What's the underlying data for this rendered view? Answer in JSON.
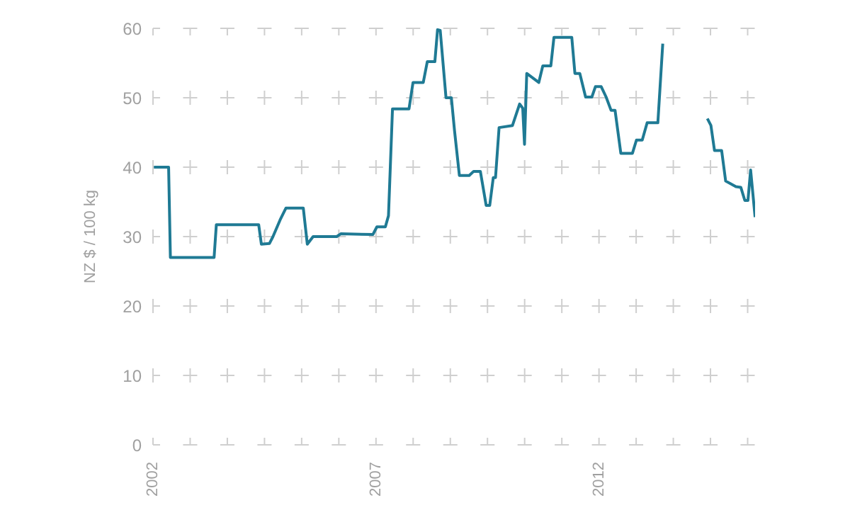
{
  "chart_data": {
    "type": "line",
    "ylabel": "NZ $ / 100 kg",
    "grid": true,
    "marker": "none",
    "line_style": "solid",
    "xlim": [
      2002,
      2015.5
    ],
    "xticks": [
      2002,
      {
        "value": 2002.8333,
        "label": null
      },
      {
        "value": 2003.6667,
        "label": null
      },
      {
        "value": 2004.5,
        "label": null
      },
      {
        "value": 2005.3333,
        "label": null
      },
      {
        "value": 2006.1667,
        "label": null
      },
      2007,
      {
        "value": 2007.8333,
        "label": null
      },
      {
        "value": 2008.6667,
        "label": null
      },
      {
        "value": 2009.5,
        "label": null
      },
      {
        "value": 2010.3333,
        "label": null
      },
      {
        "value": 2011.1667,
        "label": null
      },
      2012,
      {
        "value": 2012.8333,
        "label": null
      },
      {
        "value": 2013.6667,
        "label": null
      },
      {
        "value": 2014.5,
        "label": null
      },
      {
        "value": 2015.3333,
        "label": null
      }
    ],
    "ylim": [
      0,
      60
    ],
    "yticks": [
      0,
      10,
      20,
      30,
      40,
      50,
      60
    ],
    "x": [
      2002.02,
      2002.35,
      2002.39,
      2003.37,
      2003.42,
      2004.37,
      2004.43,
      2004.61,
      2004.69,
      2004.85,
      2004.98,
      2005.37,
      2005.46,
      2005.59,
      2006.12,
      2006.21,
      2006.93,
      2007.02,
      2007.21,
      2007.28,
      2007.37,
      2007.47,
      2007.74,
      2007.83,
      2008.06,
      2008.15,
      2008.32,
      2008.38,
      2008.44,
      2008.57,
      2008.69,
      2008.76,
      2008.87,
      2009.09,
      2009.19,
      2009.34,
      2009.47,
      2009.55,
      2009.63,
      2009.68,
      2009.76,
      2010.06,
      2010.22,
      2010.29,
      2010.33,
      2010.38,
      2010.65,
      2010.74,
      2010.92,
      2010.99,
      2011.39,
      2011.46,
      2011.57,
      2011.7,
      2011.84,
      2011.92,
      2012.05,
      2012.16,
      2012.27,
      2012.36,
      2012.49,
      2012.75,
      2012.84,
      2012.97,
      2013.08,
      2013.32,
      2013.43,
      2013.8,
      2014.43,
      2014.51,
      2014.59,
      2014.75,
      2014.84,
      2015.07,
      2015.18,
      2015.27,
      2015.34,
      2015.4,
      2015.5
    ],
    "series": [
      {
        "color": "#1f7a94",
        "values": [
          40,
          40,
          27,
          27,
          31.7,
          31.7,
          28.9,
          29,
          30,
          32.4,
          34.1,
          34.1,
          28.9,
          30,
          30,
          30.4,
          30.3,
          31.4,
          31.4,
          33,
          48.4,
          48.4,
          48.4,
          52.2,
          52.2,
          55.2,
          55.2,
          59.8,
          59.7,
          50,
          50,
          45.3,
          38.8,
          38.8,
          39.4,
          39.4,
          34.5,
          34.5,
          38.5,
          38.5,
          45.7,
          46,
          49.1,
          48.5,
          43.3,
          53.5,
          52.2,
          54.6,
          54.6,
          58.7,
          58.7,
          53.5,
          53.5,
          50.1,
          50.1,
          51.6,
          51.6,
          50.1,
          48.2,
          48.2,
          42,
          42,
          43.9,
          43.9,
          46.4,
          46.4,
          57.8,
          null,
          47,
          46,
          42.4,
          42.4,
          38,
          37.2,
          37.1,
          35.2,
          35.2,
          39.6,
          32.8
        ]
      }
    ]
  }
}
